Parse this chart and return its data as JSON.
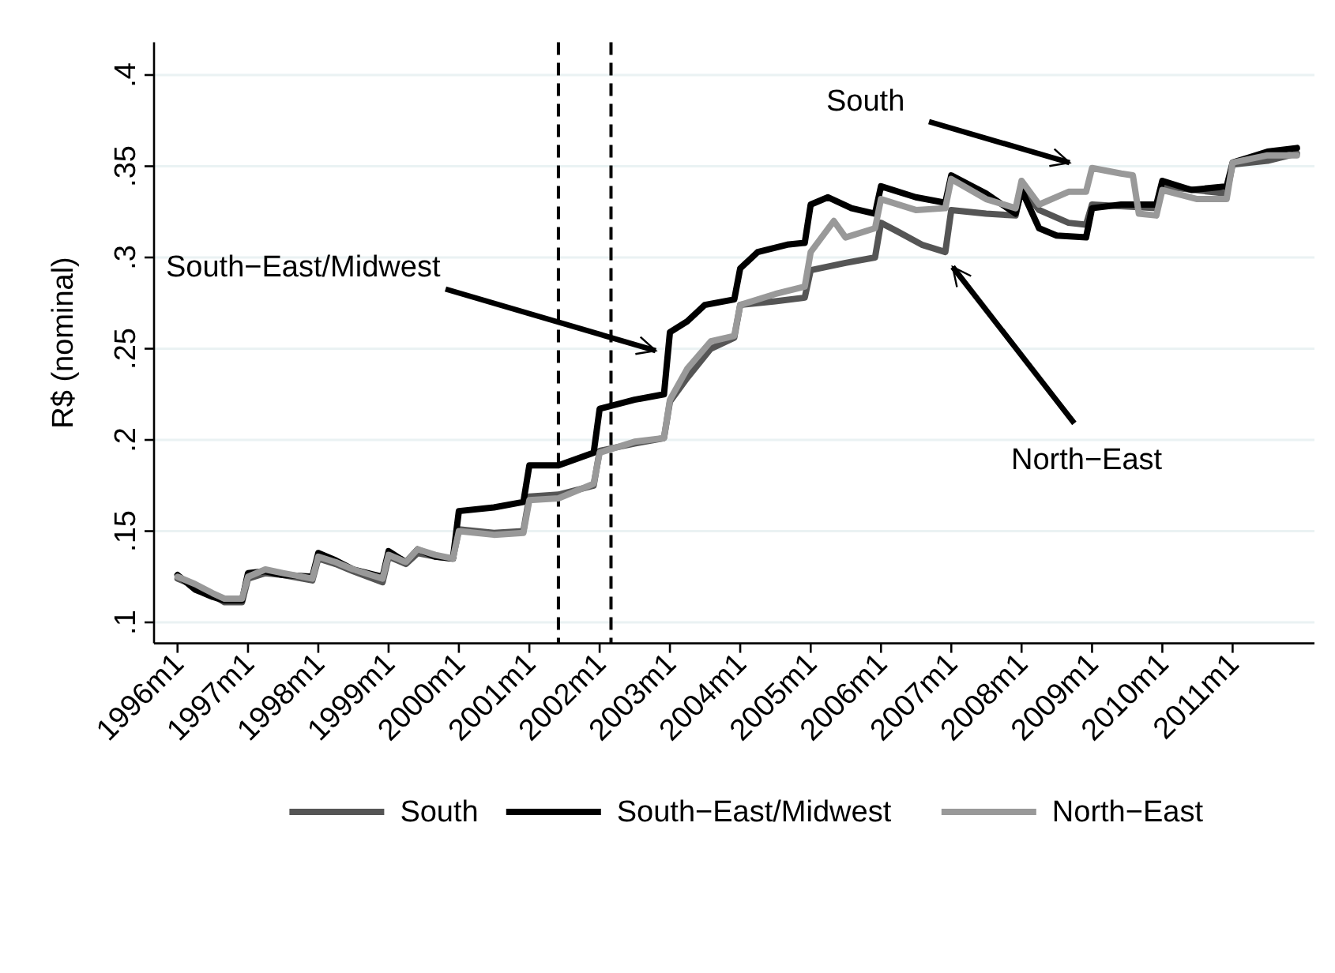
{
  "chart_data": {
    "type": "line",
    "ylabel": "R$ (nominal)",
    "xlim": [
      "1995-09",
      "2012-03"
    ],
    "ylim": [
      0.0885,
      0.418
    ],
    "xticks": [
      {
        "value": "1996-01",
        "label": "1996m1"
      },
      {
        "value": "1997-01",
        "label": "1997m1"
      },
      {
        "value": "1998-01",
        "label": "1998m1"
      },
      {
        "value": "1999-01",
        "label": "1999m1"
      },
      {
        "value": "2000-01",
        "label": "2000m1"
      },
      {
        "value": "2001-01",
        "label": "2001m1"
      },
      {
        "value": "2002-01",
        "label": "2002m1"
      },
      {
        "value": "2003-01",
        "label": "2003m1"
      },
      {
        "value": "2004-01",
        "label": "2004m1"
      },
      {
        "value": "2005-01",
        "label": "2005m1"
      },
      {
        "value": "2006-01",
        "label": "2006m1"
      },
      {
        "value": "2007-01",
        "label": "2007m1"
      },
      {
        "value": "2008-01",
        "label": "2008m1"
      },
      {
        "value": "2009-01",
        "label": "2009m1"
      },
      {
        "value": "2010-01",
        "label": "2010m1"
      },
      {
        "value": "2011-01",
        "label": "2011m1"
      }
    ],
    "yticks": [
      {
        "value": 0.1,
        "label": ".1"
      },
      {
        "value": 0.15,
        "label": ".15"
      },
      {
        "value": 0.2,
        "label": ".2"
      },
      {
        "value": 0.25,
        "label": ".25"
      },
      {
        "value": 0.3,
        "label": ".3"
      },
      {
        "value": 0.35,
        "label": ".35"
      },
      {
        "value": 0.4,
        "label": ".4"
      }
    ],
    "grid": "y",
    "legend": "bottom",
    "line_style": "solid",
    "marker": "none",
    "ref_lines": [
      {
        "axis": "x",
        "value": "2001-06",
        "label": null,
        "color": "#000000",
        "line_style": "dashed"
      },
      {
        "axis": "x",
        "value": "2002-03",
        "label": null,
        "color": "#000000",
        "line_style": "dashed"
      }
    ],
    "annotations": [
      "South",
      "South−East/Midwest",
      "North−East"
    ],
    "series": [
      {
        "name": "South",
        "color": "#555555",
        "x": [
          "1996-01",
          "1996-04",
          "1996-07",
          "1996-09",
          "1996-12",
          "1997-01",
          "1997-04",
          "1997-07",
          "1997-12",
          "1998-01",
          "1998-04",
          "1998-07",
          "1998-12",
          "1999-01",
          "1999-04",
          "1999-06",
          "1999-09",
          "1999-12",
          "2000-01",
          "2000-07",
          "2000-12",
          "2001-01",
          "2001-06",
          "2001-12",
          "2002-01",
          "2002-07",
          "2002-12",
          "2003-01",
          "2003-04",
          "2003-08",
          "2003-12",
          "2004-01",
          "2004-07",
          "2004-12",
          "2005-01",
          "2005-07",
          "2005-12",
          "2006-01",
          "2006-04",
          "2006-08",
          "2006-12",
          "2007-01",
          "2007-07",
          "2007-12",
          "2008-01",
          "2008-04",
          "2008-09",
          "2008-12",
          "2009-01",
          "2009-12",
          "2010-01",
          "2010-12",
          "2011-01",
          "2011-07",
          "2011-12"
        ],
        "values": [
          0.124,
          0.12,
          0.115,
          0.111,
          0.111,
          0.124,
          0.127,
          0.126,
          0.123,
          0.135,
          0.132,
          0.128,
          0.122,
          0.136,
          0.132,
          0.138,
          0.136,
          0.135,
          0.151,
          0.149,
          0.15,
          0.169,
          0.17,
          0.175,
          0.194,
          0.198,
          0.201,
          0.221,
          0.234,
          0.25,
          0.256,
          0.274,
          0.276,
          0.278,
          0.293,
          0.297,
          0.3,
          0.319,
          0.314,
          0.307,
          0.303,
          0.326,
          0.324,
          0.323,
          0.338,
          0.326,
          0.319,
          0.318,
          0.329,
          0.327,
          0.339,
          0.335,
          0.351,
          0.353,
          0.357
        ]
      },
      {
        "name": "South−East/Midwest",
        "color": "#000000",
        "x": [
          "1996-01",
          "1996-04",
          "1996-07",
          "1996-09",
          "1996-12",
          "1997-01",
          "1997-04",
          "1997-07",
          "1997-12",
          "1998-01",
          "1998-04",
          "1998-07",
          "1998-12",
          "1999-01",
          "1999-04",
          "1999-06",
          "1999-09",
          "1999-12",
          "2000-01",
          "2000-07",
          "2000-12",
          "2001-01",
          "2001-06",
          "2001-12",
          "2002-01",
          "2002-07",
          "2002-12",
          "2003-01",
          "2003-04",
          "2003-07",
          "2003-12",
          "2004-01",
          "2004-04",
          "2004-09",
          "2004-12",
          "2005-01",
          "2005-04",
          "2005-08",
          "2005-12",
          "2006-01",
          "2006-07",
          "2006-12",
          "2007-01",
          "2007-04",
          "2007-07",
          "2007-12",
          "2008-01",
          "2008-04",
          "2008-07",
          "2008-12",
          "2009-01",
          "2009-06",
          "2009-12",
          "2010-01",
          "2010-06",
          "2010-12",
          "2011-01",
          "2011-04",
          "2011-07",
          "2011-12"
        ],
        "values": [
          0.126,
          0.118,
          0.114,
          0.112,
          0.112,
          0.127,
          0.128,
          0.126,
          0.125,
          0.138,
          0.134,
          0.129,
          0.125,
          0.139,
          0.133,
          0.14,
          0.136,
          0.135,
          0.161,
          0.163,
          0.166,
          0.186,
          0.186,
          0.193,
          0.217,
          0.222,
          0.225,
          0.259,
          0.265,
          0.274,
          0.277,
          0.294,
          0.303,
          0.307,
          0.308,
          0.329,
          0.333,
          0.327,
          0.324,
          0.339,
          0.333,
          0.33,
          0.345,
          0.34,
          0.335,
          0.324,
          0.337,
          0.316,
          0.312,
          0.311,
          0.327,
          0.329,
          0.329,
          0.342,
          0.337,
          0.339,
          0.352,
          0.355,
          0.358,
          0.36
        ]
      },
      {
        "name": "North−East",
        "color": "#999999",
        "x": [
          "1996-01",
          "1996-04",
          "1996-07",
          "1996-09",
          "1996-12",
          "1997-01",
          "1997-04",
          "1997-07",
          "1997-12",
          "1998-01",
          "1998-04",
          "1998-07",
          "1998-12",
          "1999-01",
          "1999-04",
          "1999-06",
          "1999-09",
          "1999-12",
          "2000-01",
          "2000-07",
          "2000-12",
          "2001-01",
          "2001-06",
          "2001-12",
          "2002-01",
          "2002-07",
          "2002-12",
          "2003-01",
          "2003-04",
          "2003-08",
          "2003-12",
          "2004-01",
          "2004-07",
          "2004-12",
          "2005-01",
          "2005-05",
          "2005-07",
          "2005-12",
          "2006-01",
          "2006-07",
          "2006-12",
          "2007-01",
          "2007-07",
          "2007-12",
          "2008-01",
          "2008-04",
          "2008-09",
          "2008-12",
          "2009-01",
          "2009-06",
          "2009-08",
          "2009-09",
          "2009-12",
          "2010-01",
          "2010-07",
          "2010-12",
          "2011-01",
          "2011-07",
          "2011-12"
        ],
        "values": [
          0.125,
          0.121,
          0.116,
          0.113,
          0.113,
          0.125,
          0.129,
          0.127,
          0.124,
          0.136,
          0.133,
          0.129,
          0.124,
          0.137,
          0.133,
          0.14,
          0.137,
          0.135,
          0.15,
          0.148,
          0.149,
          0.167,
          0.168,
          0.176,
          0.193,
          0.199,
          0.201,
          0.222,
          0.239,
          0.254,
          0.257,
          0.274,
          0.28,
          0.284,
          0.303,
          0.32,
          0.311,
          0.316,
          0.332,
          0.326,
          0.327,
          0.343,
          0.332,
          0.327,
          0.342,
          0.329,
          0.336,
          0.336,
          0.349,
          0.346,
          0.345,
          0.324,
          0.323,
          0.337,
          0.332,
          0.332,
          0.352,
          0.356,
          0.356
        ]
      }
    ]
  }
}
